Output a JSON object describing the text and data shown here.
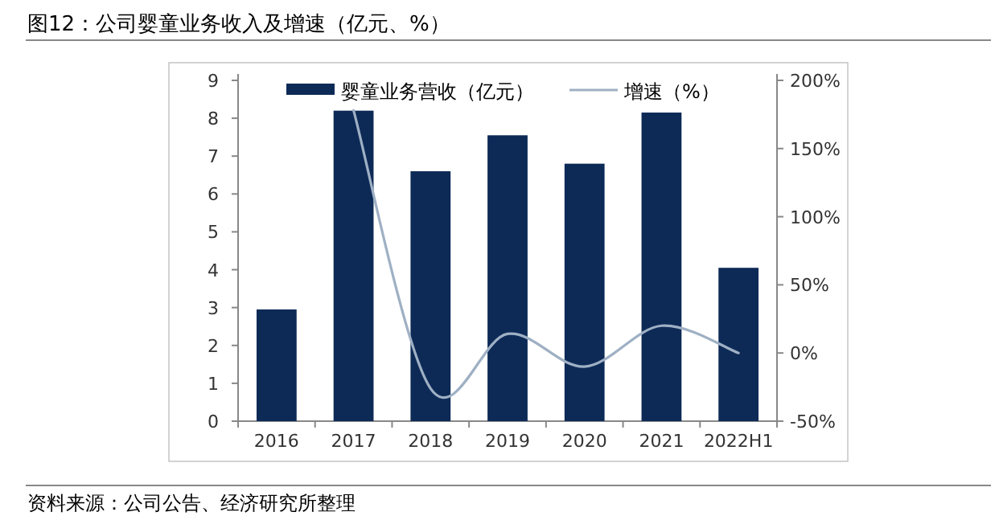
{
  "chart_data": {
    "type": "bar",
    "title": "图12：公司婴童业务收入及增速（亿元、%）",
    "categories": [
      "2016",
      "2017",
      "2018",
      "2019",
      "2020",
      "2021",
      "2022H1"
    ],
    "series": [
      {
        "name": "婴童业务营收（亿元）",
        "color": "#0d2a57",
        "values": [
          2.95,
          8.2,
          6.6,
          7.55,
          6.8,
          8.15,
          4.05
        ]
      },
      {
        "name": "增速（%）",
        "type": "line",
        "axis": "y2",
        "color": "#9fb0c4",
        "values": [
          null,
          178,
          -26,
          14,
          -10,
          20,
          0
        ]
      }
    ],
    "ylim": [
      0,
      9
    ],
    "yticks": [
      0,
      1,
      2,
      3,
      4,
      5,
      6,
      7,
      8,
      9
    ],
    "y2lim": [
      -50,
      200
    ],
    "y2ticks": [
      {
        "value": -50,
        "label": "-50%"
      },
      {
        "value": 0,
        "label": "0%"
      },
      {
        "value": 50,
        "label": "50%"
      },
      {
        "value": 100,
        "label": "100%"
      },
      {
        "value": 150,
        "label": "150%"
      },
      {
        "value": 200,
        "label": "200%"
      }
    ],
    "legend": "top",
    "grid": false,
    "annotations": [
      "资料来源：公司公告、经济研究所整理"
    ]
  }
}
